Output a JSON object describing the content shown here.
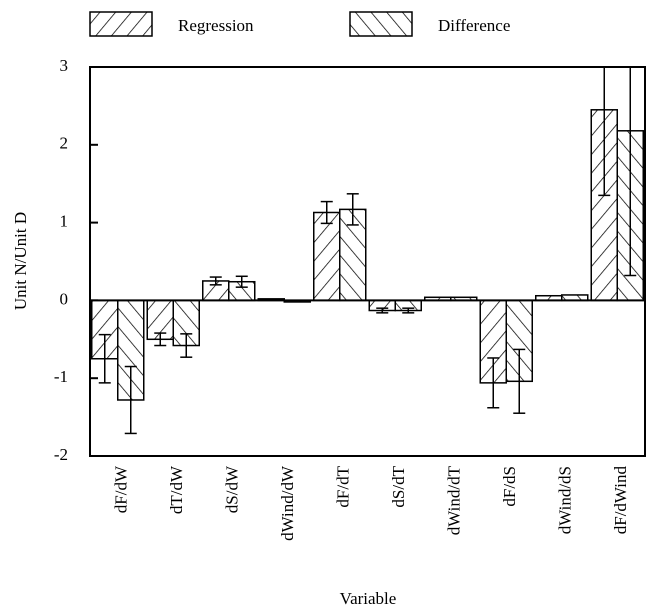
{
  "chart_data": {
    "type": "bar",
    "xlabel": "Variable",
    "ylabel": "Unit N/Unit D",
    "categories": [
      "dF/dW",
      "dT/dW",
      "dS/dW",
      "dWind/dW",
      "dF/dT",
      "dS/dT",
      "dWind/dT",
      "dF/dS",
      "dWind/dS",
      "dF/dWind"
    ],
    "series": [
      {
        "name": "Regression",
        "hatch": "forward",
        "color": "#000000",
        "values": [
          -0.75,
          -0.5,
          0.25,
          0.02,
          1.13,
          -0.13,
          0.04,
          -1.06,
          0.06,
          2.45
        ],
        "errors": [
          0.31,
          0.08,
          0.05,
          0,
          0.14,
          0.03,
          0,
          0.32,
          0,
          1.1
        ]
      },
      {
        "name": "Difference",
        "hatch": "backward",
        "color": "#000000",
        "values": [
          -1.28,
          -0.58,
          0.24,
          -0.02,
          1.17,
          -0.13,
          0.04,
          -1.04,
          0.07,
          2.18
        ],
        "errors": [
          0.43,
          0.15,
          0.07,
          0,
          0.2,
          0.03,
          0,
          0.41,
          0,
          1.86
        ]
      }
    ],
    "ylim": [
      -2,
      3
    ],
    "yticks": [
      -2,
      -1,
      0,
      1,
      2,
      3
    ],
    "grid": false,
    "legend": "top"
  }
}
